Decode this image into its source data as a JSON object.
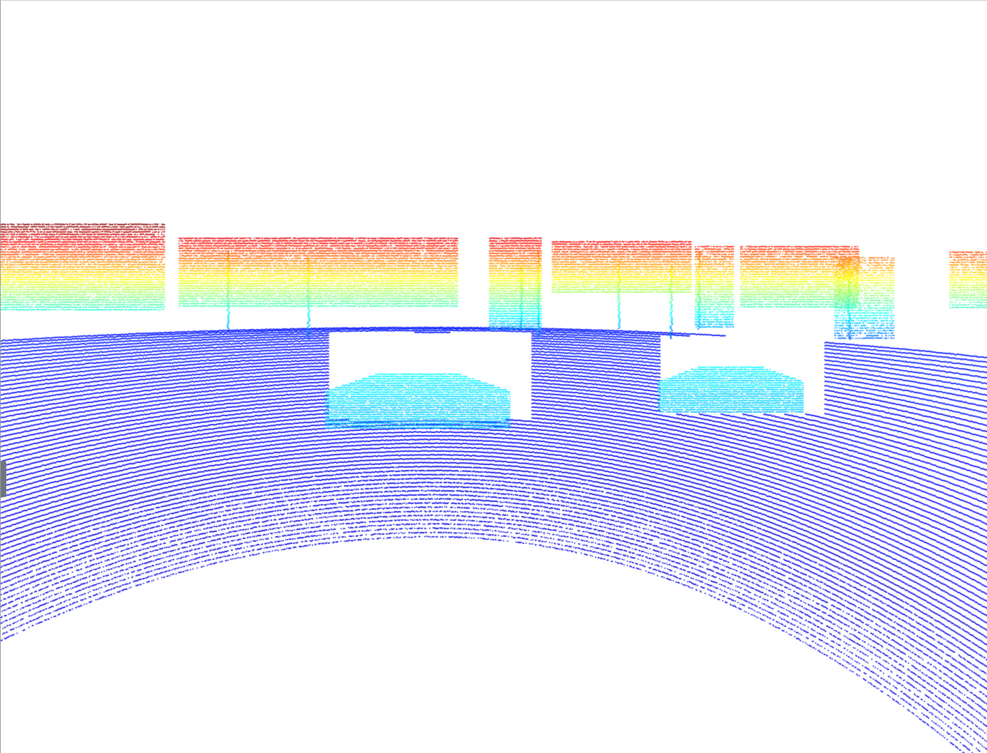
{
  "viewer": {
    "background": "#ffffff",
    "colormap": "jet",
    "colormap_stops": [
      "#00008f",
      "#0000ff",
      "#0080ff",
      "#00ffff",
      "#80ff80",
      "#ffff00",
      "#ff8000",
      "#ff0000",
      "#800000"
    ],
    "point_shape": "square",
    "scene": "lidar-point-cloud"
  },
  "objects": [
    {
      "name": "car",
      "color_band": "cyan"
    },
    {
      "name": "car",
      "color_band": "cyan"
    },
    {
      "name": "buildings",
      "color_band": "red-to-blue"
    },
    {
      "name": "ground",
      "color_band": "blue"
    }
  ]
}
